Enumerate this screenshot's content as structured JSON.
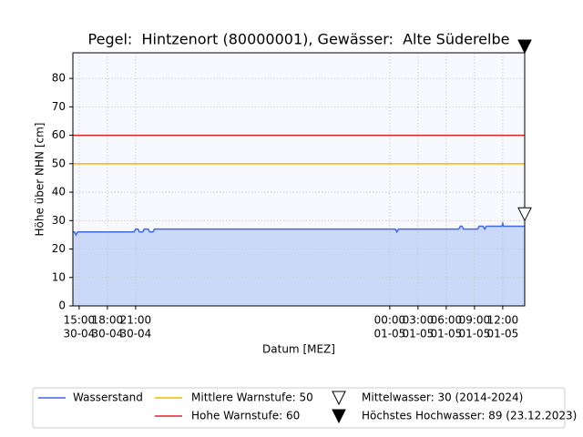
{
  "chart_data": {
    "type": "area",
    "title": "Pegel:  Hintzenort (80000001), Gewässer:  Alte Süderelbe",
    "xlabel": "Datum [MEZ]",
    "ylabel": "Höhe über NHN [cm]",
    "x": [
      "30-04 14:20",
      "30-04 14:30",
      "30-04 14:40",
      "30-04 14:50",
      "30-04 20:50",
      "30-04 21:00",
      "30-04 21:15",
      "30-04 21:25",
      "30-04 21:45",
      "30-04 21:55",
      "30-04 22:20",
      "30-04 22:30",
      "30-04 22:50",
      "30-04 23:00",
      "01-05 00:35",
      "01-05 00:45",
      "01-05 00:55",
      "01-05 07:20",
      "01-05 07:30",
      "01-05 07:40",
      "01-05 07:50",
      "01-05 09:20",
      "01-05 09:30",
      "01-05 09:55",
      "01-05 10:05",
      "01-05 10:15",
      "01-05 11:55",
      "01-05 12:00",
      "01-05 12:05",
      "01-05 14:20"
    ],
    "xlim": [
      "30-04 14:20",
      "01-05 14:20"
    ],
    "xticks": [
      {
        "value": "30-04 15:00",
        "label": [
          "15:00",
          "30-04"
        ]
      },
      {
        "value": "30-04 18:00",
        "label": [
          "18:00",
          "30-04"
        ]
      },
      {
        "value": "30-04 21:00",
        "label": [
          "21:00",
          "30-04"
        ]
      },
      {
        "value": "01-05 00:00",
        "label": [
          "00:00",
          "01-05"
        ]
      },
      {
        "value": "01-05 03:00",
        "label": [
          "03:00",
          "01-05"
        ]
      },
      {
        "value": "01-05 06:00",
        "label": [
          "06:00",
          "01-05"
        ]
      },
      {
        "value": "01-05 09:00",
        "label": [
          "09:00",
          "01-05"
        ]
      },
      {
        "value": "01-05 12:00",
        "label": [
          "12:00",
          "01-05"
        ]
      }
    ],
    "ylim": [
      0,
      89
    ],
    "yticks": [
      0,
      10,
      20,
      30,
      40,
      50,
      60,
      70,
      80
    ],
    "grid": true,
    "series": [
      {
        "name": "Wasserstand",
        "color": "#4169e1",
        "fill": "#c9d9f7",
        "values": [
          26,
          26,
          25,
          26,
          26,
          27,
          27,
          26,
          26,
          27,
          27,
          26,
          26,
          27,
          27,
          26,
          27,
          27,
          28,
          28,
          27,
          27,
          28,
          28,
          27,
          28,
          28,
          29,
          28,
          28
        ]
      }
    ],
    "reference_lines": [
      {
        "name": "Mittlere Warnstufe: 50",
        "value": 50,
        "color": "#f5b800"
      },
      {
        "name": "Hohe Warnstufe: 60",
        "value": 60,
        "color": "#d62728"
      }
    ],
    "markers": [
      {
        "name": "Mittelwasser: 30 (2014-2024)",
        "value": 30,
        "filled": false
      },
      {
        "name": "Höchstes Hochwasser: 89 (23.12.2023)",
        "value": 89,
        "filled": true
      }
    ],
    "legend": "bottom"
  }
}
